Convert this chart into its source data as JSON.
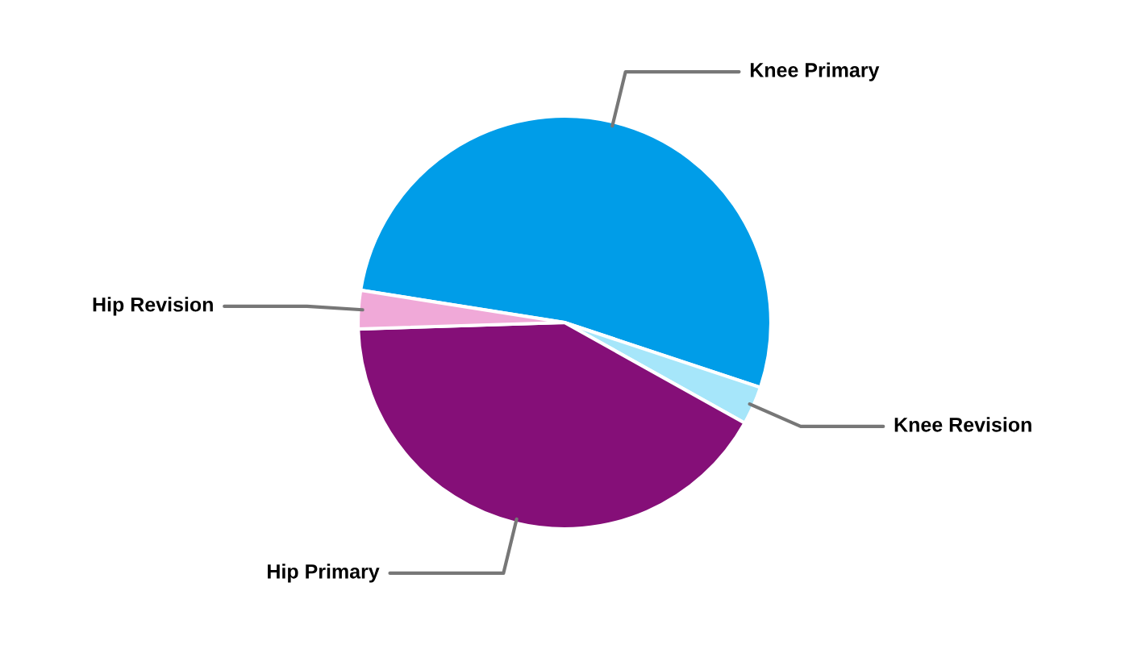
{
  "chart_data": {
    "type": "pie",
    "categories": [
      "Knee Primary",
      "Knee Revision",
      "Hip Primary",
      "Hip Revision"
    ],
    "values": [
      52.6,
      3.0,
      41.4,
      3.0
    ],
    "colors": [
      "#009de8",
      "#a6e6fa",
      "#850f78",
      "#f0a9d8"
    ]
  }
}
